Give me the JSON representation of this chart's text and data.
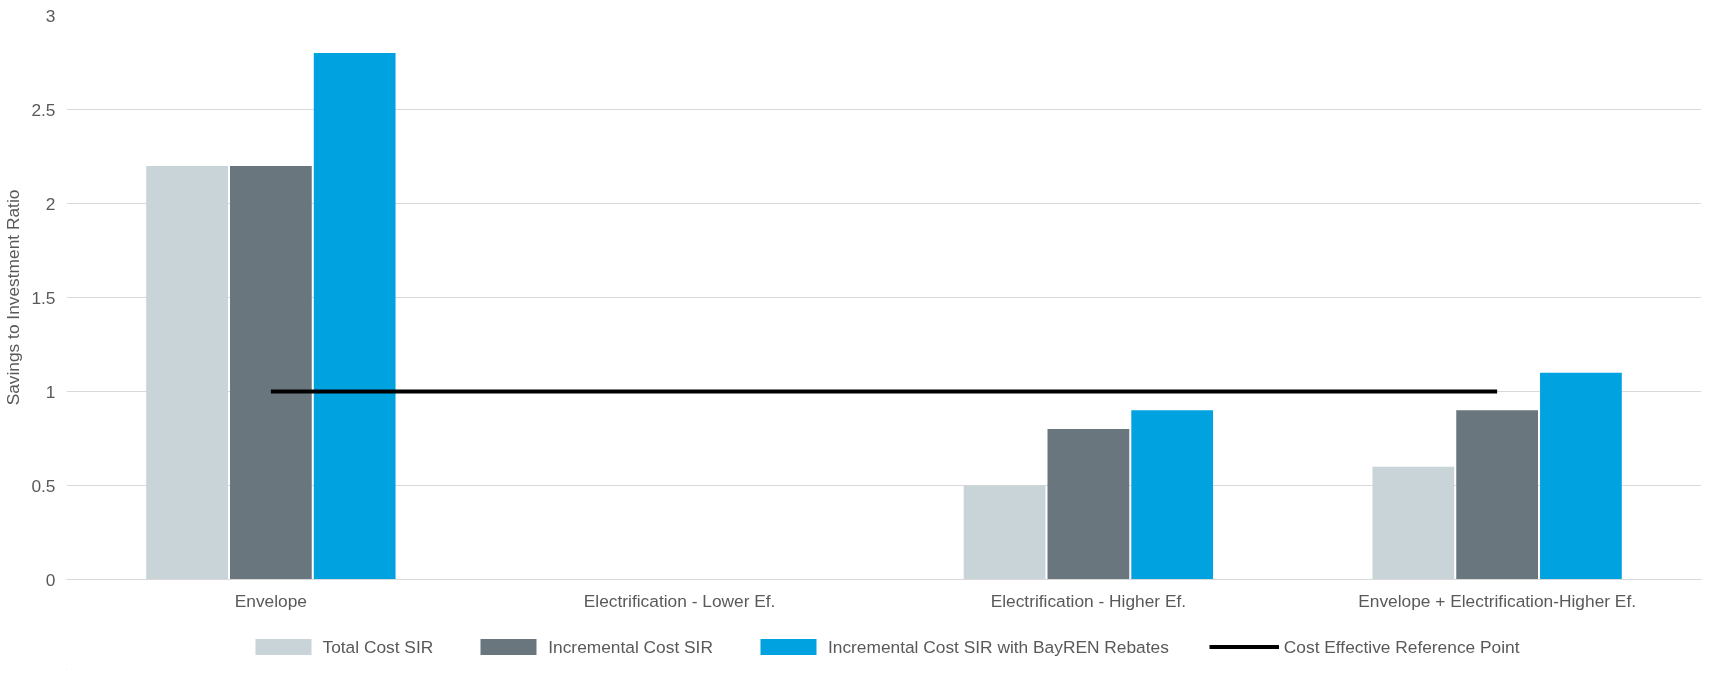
{
  "chart_data": {
    "type": "bar",
    "ylabel": "Savings to Investment Ratio",
    "categories": [
      "Envelope",
      "Electrification - Lower Ef.",
      "Electrification - Higher Ef.",
      "Envelope + Electrification-Higher Ef."
    ],
    "series": [
      {
        "name": "Total Cost SIR",
        "color": "#c8d4d8",
        "values": [
          2.2,
          null,
          0.5,
          0.6
        ]
      },
      {
        "name": "Incremental Cost SIR",
        "color": "#6a767d",
        "values": [
          2.2,
          null,
          0.8,
          0.9
        ]
      },
      {
        "name": "Incremental Cost SIR with BayREN Rebates",
        "color": "#00a3e0",
        "values": [
          2.8,
          null,
          0.9,
          1.1
        ]
      },
      {
        "name": "Cost Effective Reference Point",
        "color": "#000000",
        "type": "line",
        "values": [
          1,
          1,
          1,
          1
        ]
      }
    ],
    "ylim": [
      0,
      3
    ],
    "yticks": [
      0,
      0.5,
      1,
      1.5,
      2,
      2.5,
      3
    ],
    "grid": "y",
    "legend": "bottom"
  }
}
